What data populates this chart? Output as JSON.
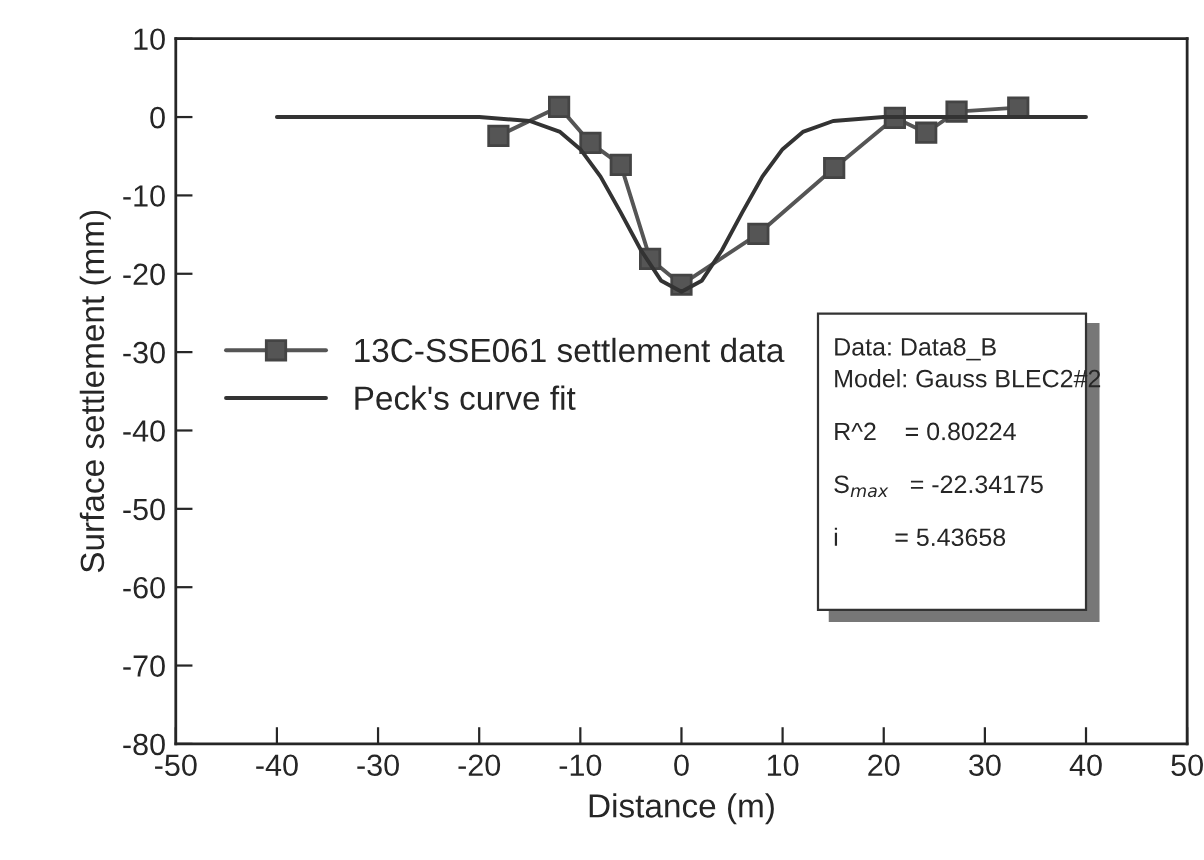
{
  "chart_data": {
    "type": "line",
    "xlabel": "Distance (m)",
    "ylabel": "Surface settlement (mm)",
    "xlim": [
      -50,
      50
    ],
    "xticks": [
      -50,
      -40,
      -30,
      -20,
      -10,
      0,
      10,
      20,
      30,
      40,
      50
    ],
    "ylim": [
      -80,
      10
    ],
    "yticks": [
      -80,
      -70,
      -60,
      -50,
      -40,
      -30,
      -20,
      -10,
      0,
      10
    ],
    "grid": false,
    "legend": "left",
    "series": [
      {
        "name": "13C-SSE061 settlement data",
        "marker": "square",
        "color": "#555555",
        "x": [
          -18.1,
          -12.1,
          -9.0,
          -6.0,
          -3.1,
          0.0,
          7.6,
          15.1,
          21.1,
          24.2,
          27.2,
          33.3
        ],
        "values": [
          -2.4,
          1.3,
          -3.3,
          -6.1,
          -18.1,
          -21.4,
          -14.9,
          -6.5,
          -0.1,
          -2.0,
          0.7,
          1.2
        ]
      },
      {
        "name": "Peck's curve fit",
        "marker": "none",
        "color": "#333333",
        "x": [
          -40,
          -20,
          -15,
          -12,
          -10,
          -8,
          -6,
          -4,
          -2,
          0,
          2,
          4,
          6,
          8,
          10,
          12,
          15,
          20,
          40
        ],
        "values": [
          0,
          0,
          -0.5,
          -1.9,
          -4.1,
          -7.6,
          -12.2,
          -17.0,
          -20.9,
          -22.3,
          -20.9,
          -17.0,
          -12.2,
          -7.6,
          -4.1,
          -1.9,
          -0.5,
          0,
          0
        ]
      }
    ],
    "annotations": [
      "Data: Data8_B",
      "Model: Gauss BLEC2#2",
      "R^2    = 0.80224",
      "S$_{max}$   = -22.34175",
      "i        = 5.43658"
    ]
  }
}
